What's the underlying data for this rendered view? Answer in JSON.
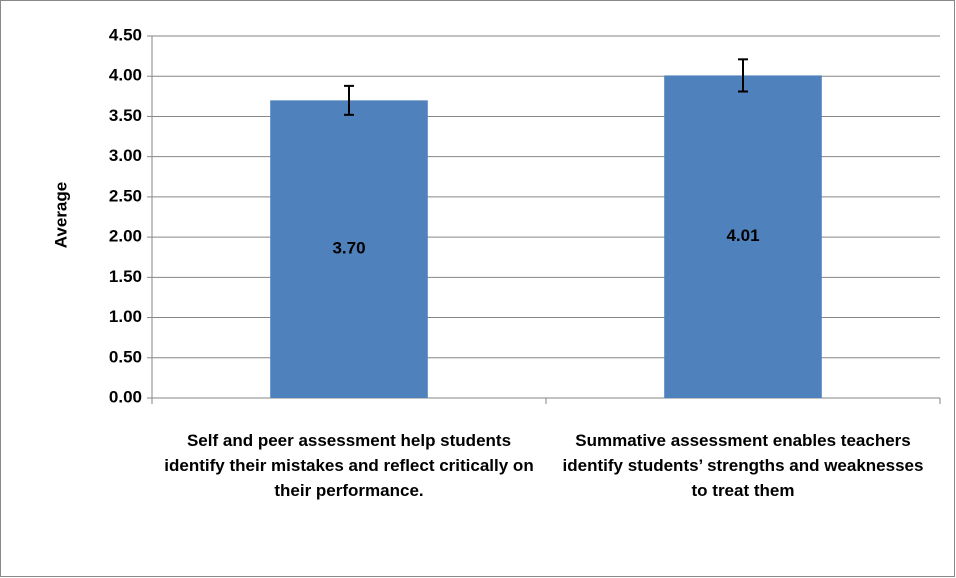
{
  "chart_data": {
    "type": "bar",
    "y_label": "Average",
    "categories": [
      "Self and peer assessment help students identify their mistakes and reflect critically on their performance.",
      "Summative assessment enables teachers identify students’ strengths and weaknesses to treat them"
    ],
    "values": [
      3.7,
      4.01
    ],
    "value_labels": [
      "3.70",
      "4.01"
    ],
    "errors": [
      0.18,
      0.2
    ],
    "color": "#4f81bd",
    "ylim": [
      0,
      4.5
    ],
    "yticks": [
      {
        "value": 0,
        "label": "0.00"
      },
      {
        "value": 0.5,
        "label": "0.50"
      },
      {
        "value": 1,
        "label": "1.00"
      },
      {
        "value": 1.5,
        "label": "1.50"
      },
      {
        "value": 2,
        "label": "2.00"
      },
      {
        "value": 2.5,
        "label": "2.50"
      },
      {
        "value": 3,
        "label": "3.00"
      },
      {
        "value": 3.5,
        "label": "3.50"
      },
      {
        "value": 4,
        "label": "4.00"
      },
      {
        "value": 4.5,
        "label": "4.50"
      }
    ],
    "grid": true
  }
}
